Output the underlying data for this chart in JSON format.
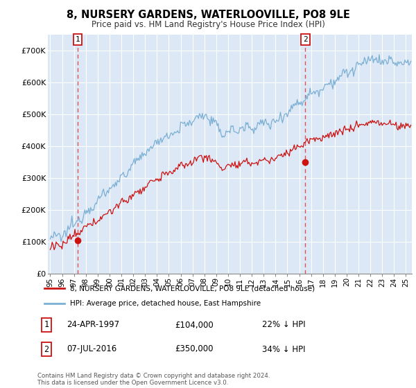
{
  "title": "8, NURSERY GARDENS, WATERLOOVILLE, PO8 9LE",
  "subtitle": "Price paid vs. HM Land Registry's House Price Index (HPI)",
  "legend_line1": "8, NURSERY GARDENS, WATERLOOVILLE, PO8 9LE (detached house)",
  "legend_line2": "HPI: Average price, detached house, East Hampshire",
  "annotation1_label": "1",
  "annotation1_date": "24-APR-1997",
  "annotation1_price": "£104,000",
  "annotation1_hpi": "22% ↓ HPI",
  "annotation2_label": "2",
  "annotation2_date": "07-JUL-2016",
  "annotation2_price": "£350,000",
  "annotation2_hpi": "34% ↓ HPI",
  "footer": "Contains HM Land Registry data © Crown copyright and database right 2024.\nThis data is licensed under the Open Government Licence v3.0.",
  "hpi_color": "#7bafd4",
  "price_color": "#cc1111",
  "marker_color": "#cc1111",
  "vline_color": "#e05050",
  "annotation_box_color": "#cc1111",
  "background_color": "#dce8f5",
  "ylim": [
    0,
    750000
  ],
  "yticks": [
    0,
    100000,
    200000,
    300000,
    400000,
    500000,
    600000,
    700000
  ],
  "ytick_labels": [
    "£0",
    "£100K",
    "£200K",
    "£300K",
    "£400K",
    "£500K",
    "£600K",
    "£700K"
  ],
  "sale1_x": 1997.3,
  "sale1_y": 104000,
  "sale2_x": 2016.52,
  "sale2_y": 350000,
  "xlim_start": 1994.8,
  "xlim_end": 2025.5
}
